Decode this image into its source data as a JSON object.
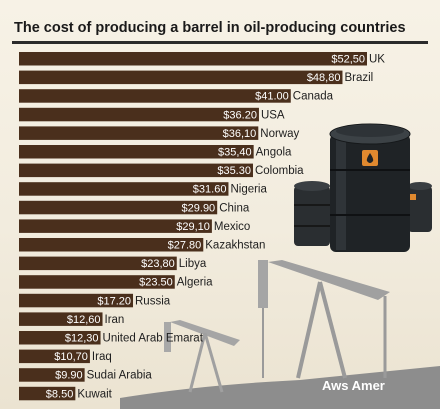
{
  "chart_data": {
    "type": "bar",
    "orientation": "horizontal",
    "title": "The cost of producing a barrel in oil-producing countries",
    "categories": [
      "UK",
      "Brazil",
      "Canada",
      "USA",
      "Norway",
      "Angola",
      "Colombia",
      "Nigeria",
      "China",
      "Mexico",
      "Kazakhstan",
      "Libya",
      "Algeria",
      "Russia",
      "Iran",
      "United Arab Emarat",
      "Iraq",
      "Sudai Arabia",
      "Kuwait"
    ],
    "values": [
      52.5,
      48.8,
      41.0,
      36.2,
      36.1,
      35.4,
      35.3,
      31.6,
      29.9,
      29.1,
      27.8,
      23.8,
      23.5,
      17.2,
      12.6,
      12.3,
      10.7,
      9.9,
      8.5
    ],
    "value_labels": [
      "$52,50",
      "$48,80",
      "$41.00",
      "$36.20",
      "$36,10",
      "$35,40",
      "$35.30",
      "$31.60",
      "$29.90",
      "$29,10",
      "$27.80",
      "$23,80",
      "$23.50",
      "$17.20",
      "$12,60",
      "$12,30",
      "$10,70",
      "$9.90",
      "$8.50"
    ],
    "xlim": [
      0,
      52.5
    ],
    "bar_color": "#4a2f1c",
    "grid": false,
    "legend": "none"
  },
  "watermark": "Aws Amer",
  "colors": {
    "background": "#f4efe2",
    "bar": "#4a2f1c",
    "barrel": "#1f2326",
    "cap": "#e0892f",
    "silhouette": "#8f8f8f"
  },
  "decoration": {
    "illustration": "oil-barrels-and-pumpjack-silhouettes"
  }
}
